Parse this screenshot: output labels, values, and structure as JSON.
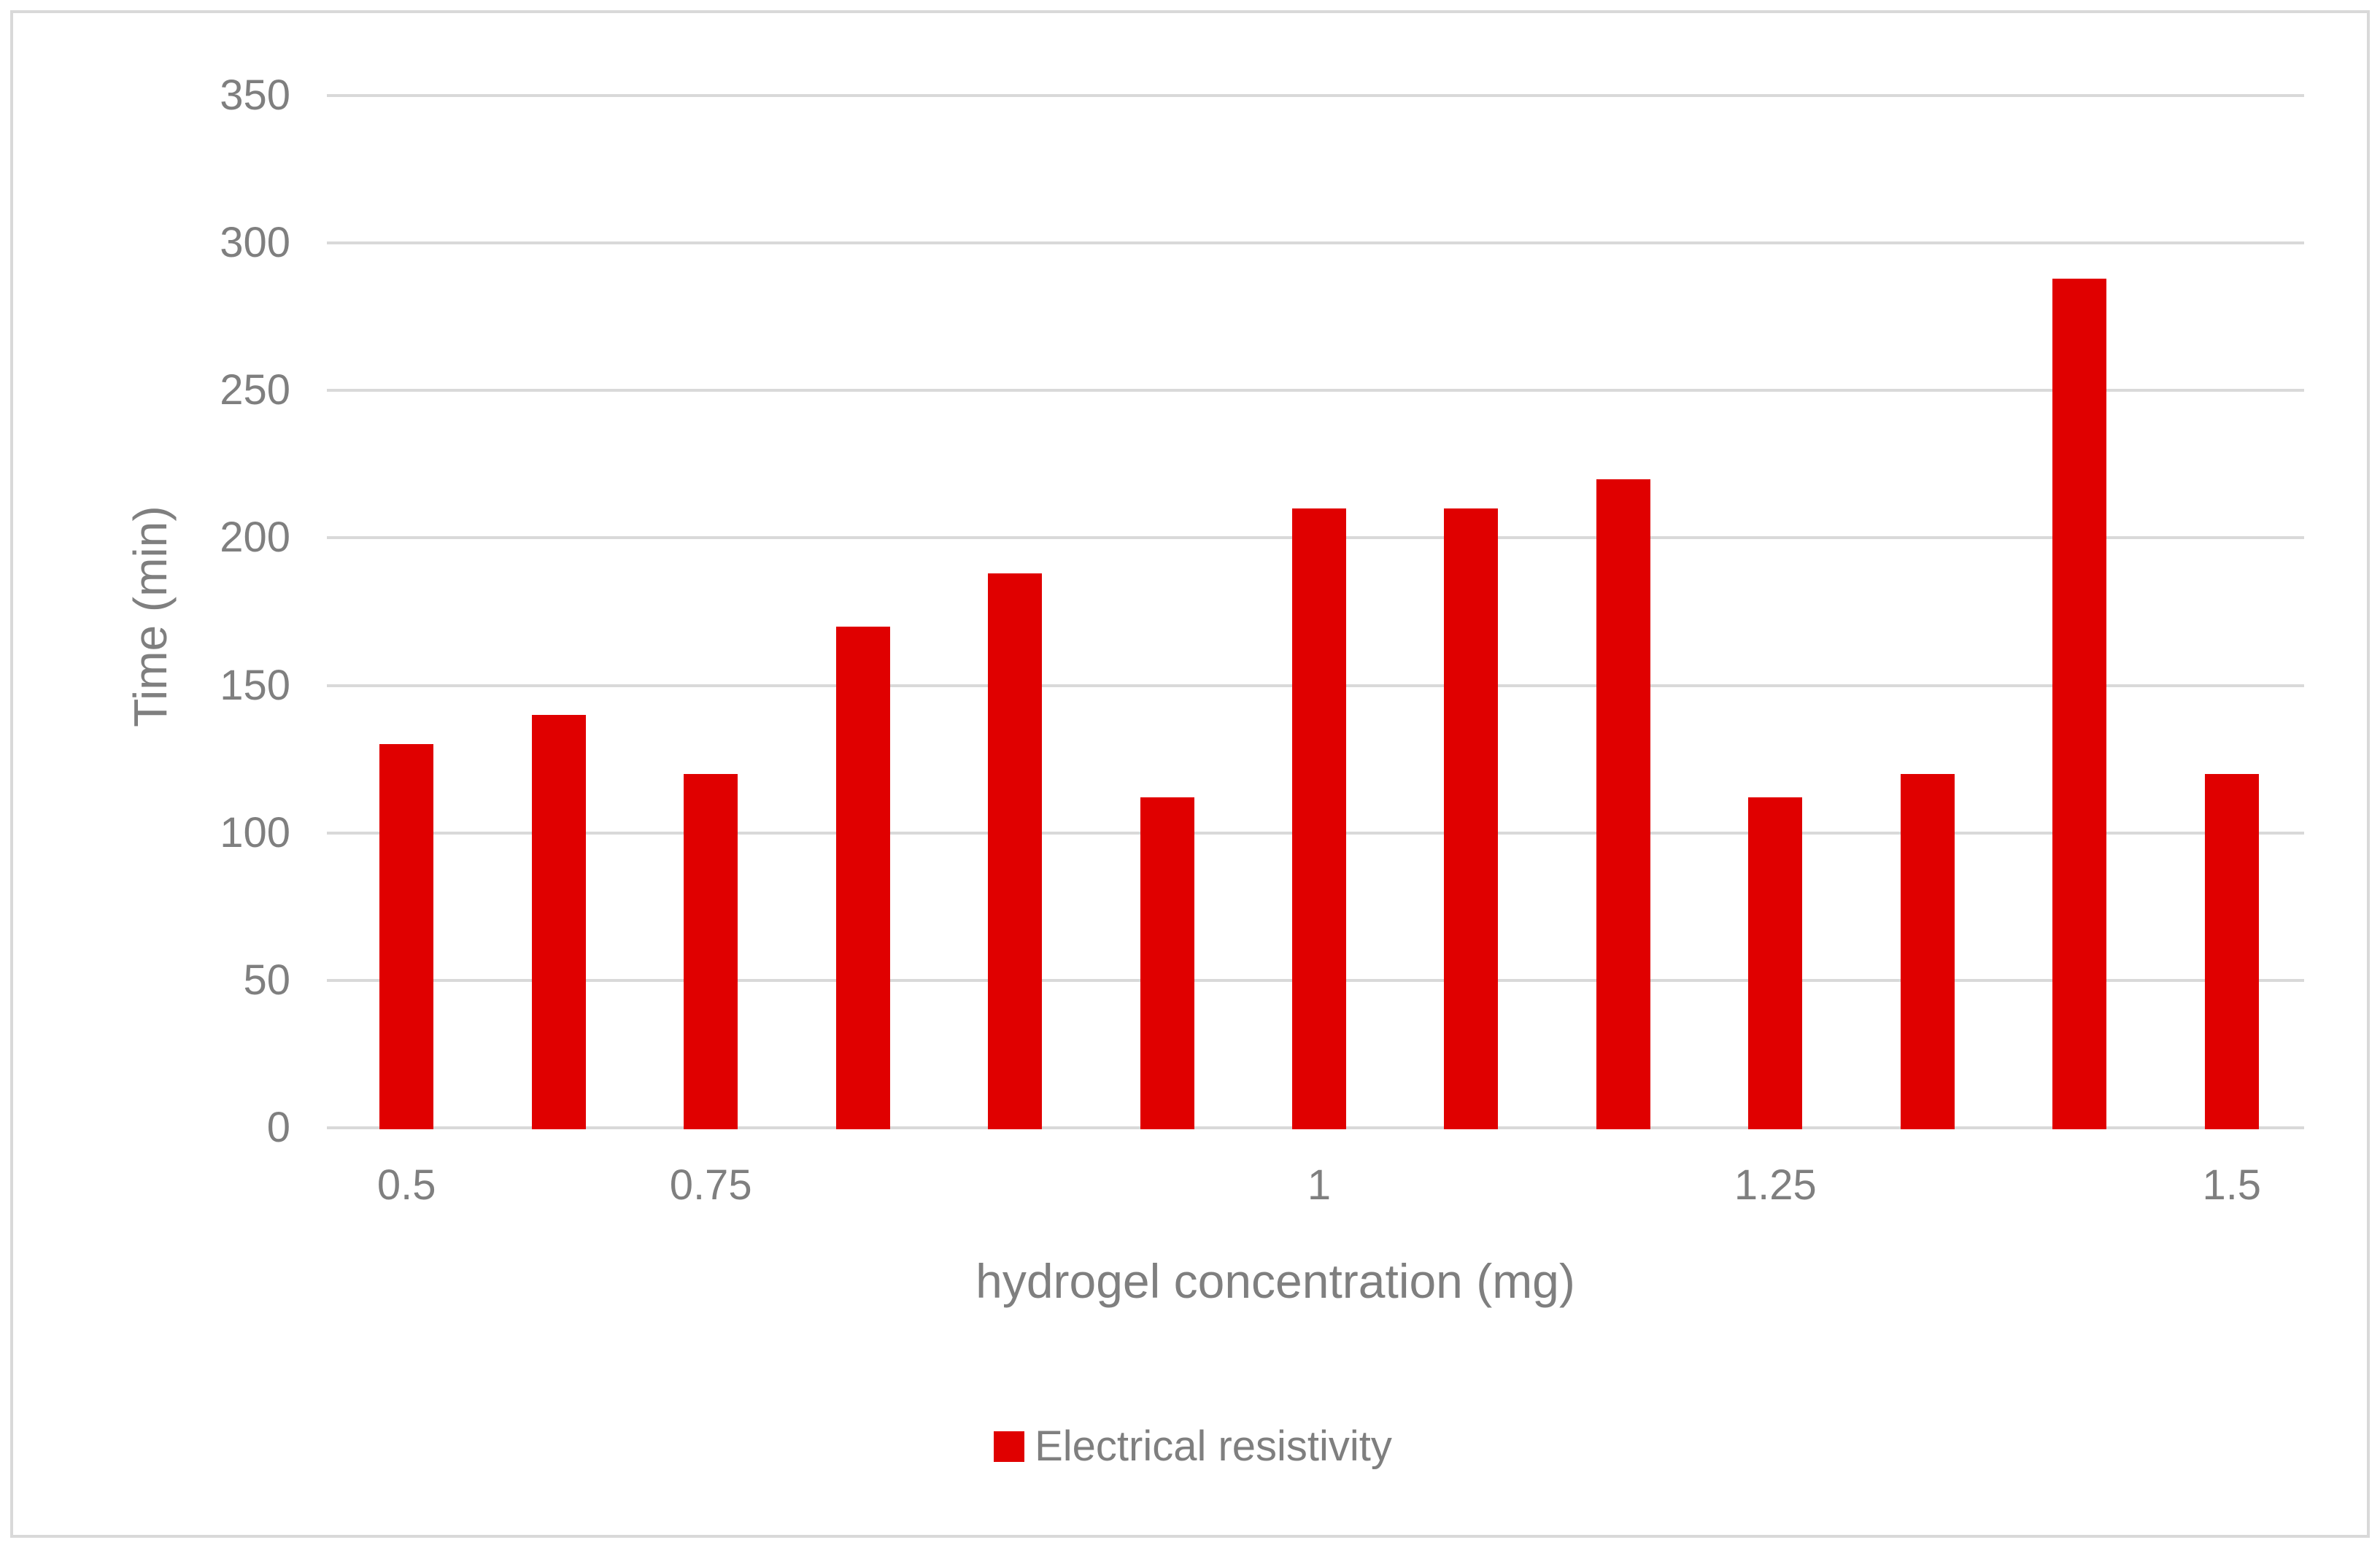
{
  "window": {
    "background": "#ffffff",
    "border_color": "#d9d9d9"
  },
  "colors": {
    "bar": "#e00000",
    "gridline": "#d9d9d9",
    "axis_line": "#d9d9d9",
    "text": "#7f7f7f"
  },
  "chart_data": {
    "type": "bar",
    "title": "",
    "xlabel": "hydrogel concentration (mg)",
    "ylabel": "Time (min)",
    "ylim": [
      0,
      350
    ],
    "ytick_step": 50,
    "yticks": [
      "0",
      "50",
      "100",
      "150",
      "200",
      "250",
      "300",
      "350"
    ],
    "grid": "horizontal",
    "legend_position": "bottom-center",
    "bar_color": "#e00000",
    "categories_count": 13,
    "x_ticks": [
      {
        "bar_index": 0,
        "label": "0.5"
      },
      {
        "bar_index": 2,
        "label": "0.75"
      },
      {
        "bar_index": 6,
        "label": "1"
      },
      {
        "bar_index": 9,
        "label": "1.25"
      },
      {
        "bar_index": 12,
        "label": "1.5"
      }
    ],
    "series": [
      {
        "name": "Electrical resistivity",
        "color": "#e00000",
        "values": [
          130,
          140,
          120,
          170,
          188,
          112,
          210,
          210,
          220,
          112,
          120,
          288,
          120
        ]
      }
    ]
  },
  "legend": {
    "label": "Electrical resistivity",
    "swatch_color": "#e00000"
  }
}
